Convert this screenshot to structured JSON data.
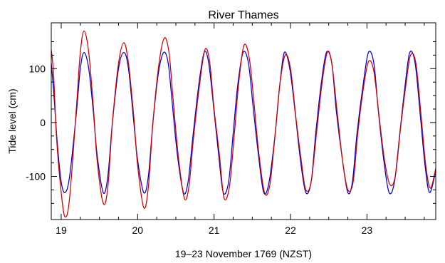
{
  "chart_data": {
    "type": "line",
    "title": "River Thames",
    "xlabel": "19–23 November 1769 (NZST)",
    "ylabel": "Tide level (cm)",
    "xlim": [
      18.87,
      23.9
    ],
    "ylim": [
      -180,
      185
    ],
    "x_ticks": [
      19,
      20,
      21,
      22,
      23
    ],
    "x_tick_labels": [
      "19",
      "20",
      "21",
      "22",
      "23"
    ],
    "y_ticks": [
      -100,
      0,
      100
    ],
    "y_tick_labels": [
      "-100",
      "0",
      "100"
    ],
    "grid": false,
    "legend": "none",
    "series": [
      {
        "color": "#0000cc",
        "x": [
          18.87,
          18.9,
          18.95,
          19.0,
          19.05,
          19.11,
          19.2,
          19.25,
          19.3,
          19.36,
          19.42,
          19.47,
          19.55,
          19.61,
          19.67,
          19.75,
          19.82,
          19.88,
          19.95,
          20.0,
          20.08,
          20.14,
          20.2,
          20.27,
          20.34,
          20.4,
          20.45,
          20.52,
          20.6,
          20.66,
          20.72,
          20.8,
          20.87,
          20.93,
          21.0,
          21.06,
          21.12,
          21.19,
          21.25,
          21.31,
          21.38,
          21.45,
          21.51,
          21.58,
          21.65,
          21.72,
          21.8,
          21.86,
          21.92,
          21.99,
          22.06,
          22.13,
          22.2,
          22.27,
          22.33,
          22.4,
          22.47,
          22.54,
          22.6,
          22.68,
          22.75,
          22.81,
          22.87,
          22.95,
          23.02,
          23.09,
          23.15,
          23.22,
          23.29,
          23.36,
          23.43,
          23.5,
          23.56,
          23.63,
          23.7,
          23.76,
          23.82,
          23.9
        ],
        "y": [
          110,
          60,
          -40,
          -110,
          -130,
          -100,
          20,
          100,
          130,
          100,
          20,
          -60,
          -130,
          -100,
          0,
          100,
          130,
          100,
          0,
          -70,
          -130,
          -100,
          0,
          90,
          130,
          110,
          40,
          -60,
          -130,
          -110,
          -30,
          70,
          130,
          110,
          20,
          -60,
          -130,
          -110,
          -20,
          70,
          130,
          110,
          30,
          -60,
          -130,
          -110,
          -20,
          70,
          130,
          100,
          20,
          -70,
          -130,
          -110,
          -20,
          70,
          130,
          110,
          20,
          -70,
          -130,
          -110,
          -20,
          70,
          130,
          110,
          20,
          -70,
          -130,
          -110,
          -20,
          70,
          130,
          110,
          10,
          -80,
          -130,
          -90
        ]
      },
      {
        "color": "#cc0000",
        "x": [
          18.87,
          18.9,
          18.94,
          19.0,
          19.05,
          19.11,
          19.2,
          19.25,
          19.3,
          19.36,
          19.42,
          19.47,
          19.55,
          19.61,
          19.67,
          19.75,
          19.82,
          19.88,
          19.95,
          20.0,
          20.08,
          20.14,
          20.2,
          20.28,
          20.35,
          20.41,
          20.46,
          20.53,
          20.61,
          20.67,
          20.73,
          20.81,
          20.88,
          20.94,
          21.0,
          21.07,
          21.13,
          21.2,
          21.26,
          21.32,
          21.39,
          21.46,
          21.52,
          21.58,
          21.66,
          21.73,
          21.8,
          21.86,
          21.93,
          22.0,
          22.07,
          22.14,
          22.2,
          22.27,
          22.34,
          22.41,
          22.48,
          22.54,
          22.61,
          22.68,
          22.75,
          22.82,
          22.88,
          22.95,
          23.02,
          23.09,
          23.16,
          23.23,
          23.3,
          23.37,
          23.44,
          23.51,
          23.57,
          23.64,
          23.71,
          23.77,
          23.83,
          23.9
        ],
        "y": [
          135,
          90,
          -30,
          -130,
          -175,
          -140,
          30,
          130,
          170,
          130,
          30,
          -70,
          -150,
          -120,
          0,
          110,
          148,
          110,
          10,
          -80,
          -158,
          -120,
          0,
          110,
          157,
          130,
          50,
          -60,
          -140,
          -120,
          -30,
          70,
          135,
          115,
          25,
          -60,
          -140,
          -120,
          -30,
          70,
          143,
          120,
          40,
          -50,
          -130,
          -115,
          -20,
          70,
          125,
          100,
          10,
          -70,
          -125,
          -110,
          -20,
          70,
          130,
          110,
          20,
          -70,
          -125,
          -110,
          -20,
          60,
          113,
          95,
          10,
          -70,
          -115,
          -100,
          -10,
          70,
          125,
          110,
          10,
          -80,
          -122,
          -85
        ]
      }
    ]
  }
}
